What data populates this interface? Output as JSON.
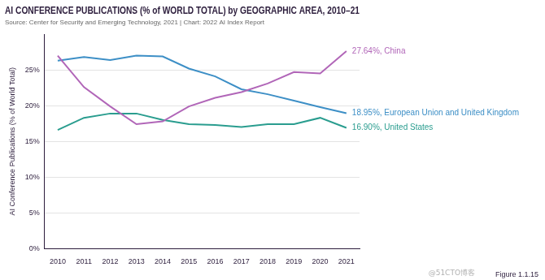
{
  "chart_data": {
    "type": "line",
    "title": "AI CONFERENCE PUBLICATIONS (% of WORLD TOTAL) by GEOGRAPHIC AREA, 2010–21",
    "subtitle": "Source: Center for Security and Emerging Technology, 2021 | Chart: 2022 AI Index Report",
    "y_label": "AI Conference Publications (% of World Total)",
    "caption": "Figure 1.1.15",
    "watermark": "@51CTO博客",
    "categories": [
      "2010",
      "2011",
      "2012",
      "2013",
      "2014",
      "2015",
      "2016",
      "2017",
      "2018",
      "2019",
      "2020",
      "2021"
    ],
    "series": [
      {
        "name": "China",
        "color": "#b166b8",
        "values": [
          27.0,
          22.6,
          19.9,
          17.4,
          17.8,
          19.9,
          21.1,
          21.9,
          23.1,
          24.7,
          24.5,
          27.64
        ]
      },
      {
        "name": "European Union and United Kingdom",
        "color": "#3d8fc6",
        "values": [
          26.3,
          26.8,
          26.4,
          27.0,
          26.9,
          25.2,
          24.1,
          22.3,
          21.6,
          20.7,
          19.8,
          18.95
        ]
      },
      {
        "name": "United States",
        "color": "#2a9d8f",
        "values": [
          16.6,
          18.3,
          18.9,
          18.9,
          18.0,
          17.4,
          17.3,
          17.0,
          17.4,
          17.4,
          18.3,
          16.9
        ]
      }
    ],
    "annotations": [
      {
        "text": "27.64%, China",
        "series": "China"
      },
      {
        "text": "18.95%, European Union and United Kingdom",
        "series": "European Union and United Kingdom"
      },
      {
        "text": "16.90%, United States",
        "series": "United States"
      }
    ],
    "ylim": [
      0,
      30
    ],
    "yticks": [
      {
        "value": 0,
        "label": "0%"
      },
      {
        "value": 5,
        "label": "5%"
      },
      {
        "value": 10,
        "label": "10%"
      },
      {
        "value": 15,
        "label": "15%"
      },
      {
        "value": 20,
        "label": "20%"
      },
      {
        "value": 25,
        "label": "25%"
      }
    ],
    "grid": true,
    "marker": "none"
  }
}
